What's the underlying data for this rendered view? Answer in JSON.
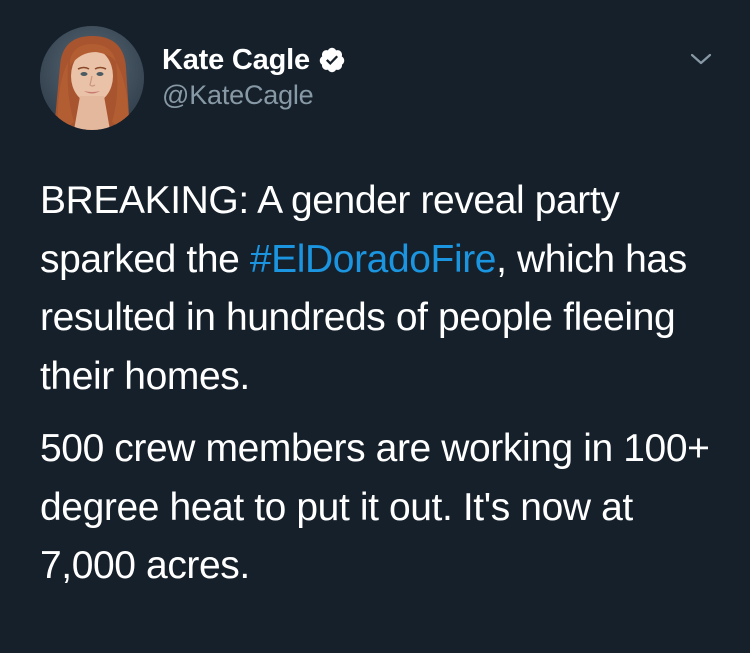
{
  "user": {
    "display_name": "Kate Cagle",
    "handle": "@KateCagle",
    "verified": true,
    "avatar_icon": "profile-photo"
  },
  "menu_icon": "chevron-down-icon",
  "tweet": {
    "p1_before": "BREAKING: A gender reveal party sparked the ",
    "hashtag": "#ElDoradoFire",
    "p1_after": ", which has resulted in hundreds of people fleeing their homes.",
    "p2": "500 crew members are working in 100+ degree heat to put it out. It's now at 7,000 acres."
  },
  "colors": {
    "background": "#15202b",
    "text": "#ffffff",
    "secondary_text": "#8899a6",
    "link": "#1b95e0",
    "verified_badge": "#ffffff"
  }
}
